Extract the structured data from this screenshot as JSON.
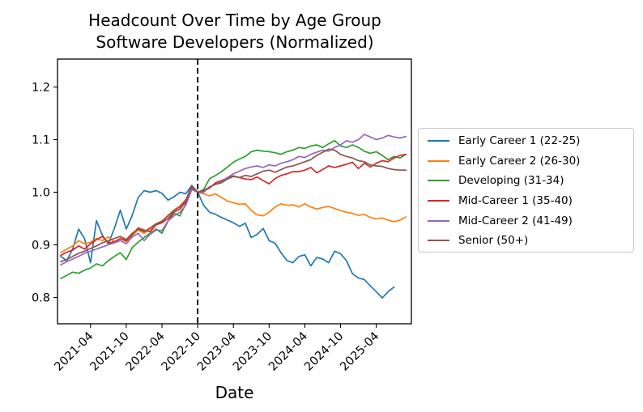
{
  "figure": {
    "title_line1": "Headcount Over Time by Age Group",
    "title_line2": "Software Developers (Normalized)"
  },
  "chart_data": {
    "type": "line",
    "title": "Headcount Over Time by Age Group",
    "subtitle": "Software Developers (Normalized)",
    "xlabel": "Date",
    "ylabel": "",
    "grid": false,
    "legend_position": "outside-right",
    "y_ticks": [
      0.8,
      0.9,
      1.0,
      1.1,
      1.2
    ],
    "ylim": [
      0.75,
      1.253
    ],
    "xlim_month_index": [
      -0.55,
      58.9
    ],
    "x_tick_labels": [
      "2021-04",
      "2021-10",
      "2022-04",
      "2022-10",
      "2023-04",
      "2023-10",
      "2024-04",
      "2024-10",
      "2025-04"
    ],
    "vline": {
      "x": "2022-10",
      "style": "dashed",
      "color": "#000000"
    },
    "categories": [
      "2020-11",
      "2020-12",
      "2021-01",
      "2021-02",
      "2021-03",
      "2021-04",
      "2021-05",
      "2021-06",
      "2021-07",
      "2021-08",
      "2021-09",
      "2021-10",
      "2021-11",
      "2021-12",
      "2022-01",
      "2022-02",
      "2022-03",
      "2022-04",
      "2022-05",
      "2022-06",
      "2022-07",
      "2022-08",
      "2022-09",
      "2022-10",
      "2022-11",
      "2022-12",
      "2023-01",
      "2023-02",
      "2023-03",
      "2023-04",
      "2023-05",
      "2023-06",
      "2023-07",
      "2023-08",
      "2023-09",
      "2023-10",
      "2023-11",
      "2023-12",
      "2024-01",
      "2024-02",
      "2024-03",
      "2024-04",
      "2024-05",
      "2024-06",
      "2024-07",
      "2024-08",
      "2024-09",
      "2024-10",
      "2024-11",
      "2024-12",
      "2025-01",
      "2025-02",
      "2025-03",
      "2025-04",
      "2025-05",
      "2025-06",
      "2025-07",
      "2025-08",
      "2025-09"
    ],
    "series": [
      {
        "name": "Early Career 1 (22-25)",
        "color": "#1f77b4",
        "values": [
          0.878,
          0.87,
          0.892,
          0.93,
          0.912,
          0.866,
          0.946,
          0.918,
          0.902,
          0.931,
          0.966,
          0.93,
          0.956,
          0.99,
          1.003,
          1.0,
          1.003,
          0.998,
          0.985,
          0.991,
          1.0,
          0.997,
          1.013,
          1.0,
          0.975,
          0.962,
          0.958,
          0.952,
          0.947,
          0.942,
          0.935,
          0.941,
          0.914,
          0.92,
          0.931,
          0.908,
          0.903,
          0.885,
          0.87,
          0.866,
          0.878,
          0.881,
          0.86,
          0.876,
          0.873,
          0.866,
          0.888,
          0.883,
          0.87,
          0.845,
          0.837,
          0.834,
          0.822,
          0.811,
          0.799,
          0.811,
          0.82,
          null,
          null
        ]
      },
      {
        "name": "Early Career 2 (26-30)",
        "color": "#ff7f0e",
        "values": [
          0.885,
          0.892,
          0.898,
          0.908,
          0.902,
          0.905,
          0.912,
          0.908,
          0.915,
          0.905,
          0.912,
          0.906,
          0.918,
          0.928,
          0.922,
          0.93,
          0.938,
          0.944,
          0.956,
          0.966,
          0.974,
          0.986,
          1.008,
          1.0,
          0.997,
          0.993,
          0.997,
          0.99,
          0.983,
          0.98,
          0.977,
          0.978,
          0.965,
          0.957,
          0.955,
          0.962,
          0.972,
          0.978,
          0.975,
          0.976,
          0.972,
          0.978,
          0.972,
          0.968,
          0.971,
          0.973,
          0.969,
          0.965,
          0.962,
          0.96,
          0.956,
          0.958,
          0.952,
          0.949,
          0.951,
          0.947,
          0.944,
          0.947,
          0.953
        ]
      },
      {
        "name": "Developing (31-34)",
        "color": "#2ca02c",
        "values": [
          0.836,
          0.842,
          0.848,
          0.846,
          0.852,
          0.856,
          0.864,
          0.86,
          0.87,
          0.878,
          0.885,
          0.872,
          0.895,
          0.905,
          0.914,
          0.922,
          0.93,
          0.922,
          0.945,
          0.96,
          0.955,
          0.978,
          1.008,
          1.0,
          1.005,
          1.026,
          1.032,
          1.039,
          1.048,
          1.057,
          1.063,
          1.068,
          1.077,
          1.08,
          1.078,
          1.077,
          1.075,
          1.072,
          1.077,
          1.08,
          1.085,
          1.083,
          1.088,
          1.09,
          1.085,
          1.092,
          1.098,
          1.088,
          1.085,
          1.09,
          1.085,
          1.078,
          1.074,
          1.077,
          1.07,
          1.062,
          1.068,
          1.065,
          1.072
        ]
      },
      {
        "name": "Mid-Career 1 (35-40)",
        "color": "#d62728",
        "values": [
          0.88,
          0.886,
          0.89,
          0.898,
          0.892,
          0.902,
          0.91,
          0.916,
          0.903,
          0.906,
          0.912,
          0.908,
          0.92,
          0.932,
          0.928,
          0.925,
          0.938,
          0.942,
          0.95,
          0.962,
          0.968,
          0.982,
          1.01,
          1.0,
          1.002,
          1.008,
          1.018,
          1.022,
          1.027,
          1.031,
          1.028,
          1.025,
          1.024,
          1.029,
          1.022,
          1.016,
          1.026,
          1.032,
          1.035,
          1.039,
          1.039,
          1.042,
          1.047,
          1.037,
          1.043,
          1.05,
          1.047,
          1.05,
          1.053,
          1.057,
          1.045,
          1.055,
          1.048,
          1.055,
          1.06,
          1.058,
          1.065,
          1.07,
          1.072
        ]
      },
      {
        "name": "Mid-Career 2 (41-49)",
        "color": "#9467bd",
        "values": [
          0.862,
          0.868,
          0.873,
          0.878,
          0.884,
          0.888,
          0.892,
          0.896,
          0.9,
          0.904,
          0.908,
          0.902,
          0.915,
          0.922,
          0.908,
          0.92,
          0.928,
          0.927,
          0.945,
          0.955,
          0.962,
          0.975,
          1.005,
          1.0,
          1.0,
          1.01,
          1.015,
          1.02,
          1.028,
          1.035,
          1.04,
          1.045,
          1.048,
          1.05,
          1.047,
          1.052,
          1.05,
          1.055,
          1.058,
          1.062,
          1.068,
          1.066,
          1.072,
          1.076,
          1.08,
          1.078,
          1.085,
          1.09,
          1.098,
          1.095,
          1.1,
          1.11,
          1.105,
          1.1,
          1.103,
          1.108,
          1.105,
          1.103,
          1.106
        ]
      },
      {
        "name": "Senior (50+)",
        "color": "#8c564b",
        "values": [
          0.868,
          0.872,
          0.878,
          0.884,
          0.888,
          0.893,
          0.898,
          0.904,
          0.908,
          0.912,
          0.916,
          0.91,
          0.922,
          0.93,
          0.925,
          0.932,
          0.94,
          0.945,
          0.955,
          0.965,
          0.972,
          0.985,
          1.012,
          1.0,
          1.003,
          1.01,
          1.015,
          1.018,
          1.025,
          1.03,
          1.028,
          1.032,
          1.03,
          1.035,
          1.04,
          1.042,
          1.038,
          1.043,
          1.048,
          1.05,
          1.054,
          1.058,
          1.062,
          1.07,
          1.076,
          1.082,
          1.08,
          1.072,
          1.068,
          1.065,
          1.06,
          1.058,
          1.052,
          1.05,
          1.049,
          1.045,
          1.043,
          1.042,
          1.042
        ]
      }
    ]
  }
}
